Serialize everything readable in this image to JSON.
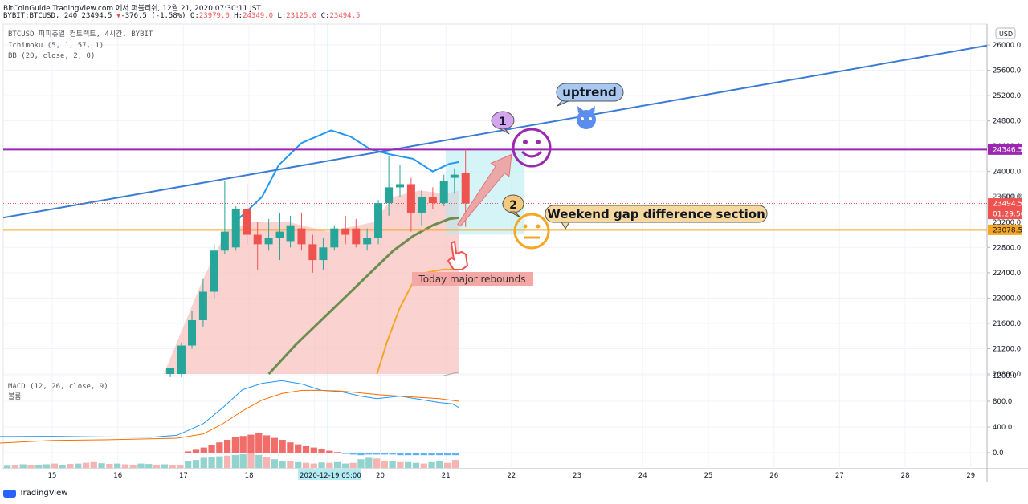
{
  "header": {
    "line1": "BitCoinGuide TradingView.com 에서 퍼블리쉬, 12월 21, 2020 07:30:11 JST",
    "symbol": "BYBIT:BTCUSD, 240",
    "last": "23494.5",
    "change": "-376.5 (-1.58%)",
    "open_label": "O:",
    "open": "23979.0",
    "high_label": "H:",
    "high": "24349.0",
    "low_label": "L:",
    "low": "23125.0",
    "close_label": "C:",
    "close": "23494.5"
  },
  "legend": {
    "title": "BTCUSD 퍼피츄얼 컨트랙트, 4시간, BYBIT",
    "ichimoku": "Ichimoku (5, 1, 57, 1)",
    "bb": "BB (20, close, 2, 0)"
  },
  "macd_legend": {
    "title": "MACD (12, 26, close, 9)",
    "sub": "볼륨"
  },
  "currency_button": "USD",
  "footer": {
    "brand": "TradingView"
  },
  "annotations": {
    "uptrend": "uptrend",
    "gap": "Weekend gap difference section",
    "rebound": "Today major rebounds",
    "marker1": "1",
    "marker2": "2"
  },
  "price_tags": {
    "purple": "24346.5",
    "last": "23494.5",
    "countdown": "01:29:50",
    "orange": "23078.5",
    "partial": "23600.0"
  },
  "colors": {
    "up": "#26a69a",
    "down": "#ef5350",
    "trend": "#3a7bd5",
    "purple": "#9c27b0",
    "orange": "#f5a623",
    "ichimoku_green": "#6b8e4e",
    "cloud": "#f8c3c0",
    "macd": "#2196f3",
    "signal": "#ff6d00"
  },
  "chart_data": {
    "type": "candlestick",
    "x_ticks": [
      "15",
      "16",
      "17",
      "18",
      "19",
      "20",
      "21",
      "22",
      "23",
      "24",
      "25",
      "26",
      "27",
      "28",
      "29"
    ],
    "x_highlight": "2020-12-19  05:00",
    "y_ticks": [
      "26000.0",
      "25600.0",
      "25200.0",
      "24800.0",
      "24400.0",
      "24000.0",
      "23600.0",
      "23200.0",
      "22800.0",
      "22400.0",
      "22000.0",
      "21600.0",
      "21200.0",
      "20800.0"
    ],
    "ylim": [
      20800,
      26000
    ],
    "macd_y_ticks": [
      "1200.0",
      "800.0",
      "400.0",
      "0.0"
    ],
    "macd_ylim": [
      -200,
      1200
    ],
    "candles": [
      {
        "x": 16.8,
        "o": 20800,
        "c": 20900,
        "h": 20900,
        "l": 20750
      },
      {
        "x": 16.97,
        "o": 20800,
        "c": 21250,
        "h": 21300,
        "l": 20750
      },
      {
        "x": 17.13,
        "o": 21250,
        "c": 21650,
        "h": 21800,
        "l": 21200
      },
      {
        "x": 17.3,
        "o": 21650,
        "c": 22100,
        "h": 22300,
        "l": 21550
      },
      {
        "x": 17.47,
        "o": 22100,
        "c": 22750,
        "h": 22850,
        "l": 22000
      },
      {
        "x": 17.63,
        "o": 22750,
        "c": 23050,
        "h": 23850,
        "l": 22700
      },
      {
        "x": 17.8,
        "o": 22800,
        "c": 23400,
        "h": 23450,
        "l": 22750
      },
      {
        "x": 17.97,
        "o": 23400,
        "c": 23000,
        "h": 23800,
        "l": 22850
      },
      {
        "x": 18.13,
        "o": 23000,
        "c": 22850,
        "h": 23200,
        "l": 22450
      },
      {
        "x": 18.3,
        "o": 22850,
        "c": 22950,
        "h": 23250,
        "l": 22750
      },
      {
        "x": 18.47,
        "o": 22950,
        "c": 23050,
        "h": 23350,
        "l": 22600
      },
      {
        "x": 18.63,
        "o": 22900,
        "c": 23150,
        "h": 23300,
        "l": 22800
      },
      {
        "x": 18.8,
        "o": 23100,
        "c": 22850,
        "h": 23350,
        "l": 22750
      },
      {
        "x": 18.97,
        "o": 22850,
        "c": 22600,
        "h": 23000,
        "l": 22400
      },
      {
        "x": 19.13,
        "o": 22600,
        "c": 22800,
        "h": 22950,
        "l": 22450
      },
      {
        "x": 19.3,
        "o": 22800,
        "c": 23100,
        "h": 23150,
        "l": 22750
      },
      {
        "x": 19.47,
        "o": 23100,
        "c": 23000,
        "h": 23300,
        "l": 22850
      },
      {
        "x": 19.63,
        "o": 23100,
        "c": 22850,
        "h": 23250,
        "l": 22800
      },
      {
        "x": 19.8,
        "o": 22850,
        "c": 22950,
        "h": 23100,
        "l": 22750
      },
      {
        "x": 19.97,
        "o": 22950,
        "c": 23500,
        "h": 23550,
        "l": 22850
      },
      {
        "x": 20.13,
        "o": 23500,
        "c": 23750,
        "h": 24250,
        "l": 23300
      },
      {
        "x": 20.3,
        "o": 23750,
        "c": 23800,
        "h": 24100,
        "l": 23600
      },
      {
        "x": 20.47,
        "o": 23800,
        "c": 23350,
        "h": 23900,
        "l": 23050
      },
      {
        "x": 20.63,
        "o": 23350,
        "c": 23600,
        "h": 23700,
        "l": 23150
      },
      {
        "x": 20.8,
        "o": 23600,
        "c": 23500,
        "h": 23750,
        "l": 23400
      },
      {
        "x": 20.97,
        "o": 23500,
        "c": 23850,
        "h": 23950,
        "l": 23450
      },
      {
        "x": 21.13,
        "o": 23900,
        "c": 23950,
        "h": 24050,
        "l": 23650
      },
      {
        "x": 21.3,
        "o": 23979,
        "c": 23494.5,
        "h": 24349,
        "l": 23125
      }
    ],
    "trendline": {
      "x": [
        14.0,
        29.3
      ],
      "y": [
        23270,
        25990
      ]
    },
    "purple_line": 24346.5,
    "orange_line": 23078.5,
    "bb_upper": [
      {
        "x": 17.85,
        "y": 23260
      },
      {
        "x": 18.2,
        "y": 23600
      },
      {
        "x": 18.45,
        "y": 24100
      },
      {
        "x": 18.8,
        "y": 24450
      },
      {
        "x": 19.25,
        "y": 24650
      },
      {
        "x": 19.55,
        "y": 24550
      },
      {
        "x": 19.85,
        "y": 24350
      },
      {
        "x": 20.15,
        "y": 24270
      },
      {
        "x": 20.5,
        "y": 24200
      },
      {
        "x": 20.8,
        "y": 24000
      },
      {
        "x": 21.05,
        "y": 24120
      },
      {
        "x": 21.2,
        "y": 24150
      }
    ],
    "ichimoku_base": [
      {
        "x": 18.3,
        "y": 20800
      },
      {
        "x": 18.7,
        "y": 21250
      },
      {
        "x": 19.1,
        "y": 21650
      },
      {
        "x": 19.5,
        "y": 22050
      },
      {
        "x": 19.9,
        "y": 22450
      },
      {
        "x": 20.2,
        "y": 22750
      },
      {
        "x": 20.5,
        "y": 22980
      },
      {
        "x": 20.8,
        "y": 23150
      },
      {
        "x": 21.05,
        "y": 23250
      },
      {
        "x": 21.2,
        "y": 23270
      }
    ],
    "ichimoku_lead": [
      {
        "x": 19.95,
        "y": 20800
      },
      {
        "x": 20.1,
        "y": 21300
      },
      {
        "x": 20.3,
        "y": 21850
      },
      {
        "x": 20.5,
        "y": 22250
      },
      {
        "x": 20.7,
        "y": 22400
      },
      {
        "x": 20.95,
        "y": 22450
      },
      {
        "x": 21.2,
        "y": 22450
      }
    ],
    "macd": [
      {
        "x": 14.0,
        "y": 250
      },
      {
        "x": 15.0,
        "y": 255
      },
      {
        "x": 15.8,
        "y": 245
      },
      {
        "x": 16.5,
        "y": 240
      },
      {
        "x": 16.9,
        "y": 270
      },
      {
        "x": 17.3,
        "y": 450
      },
      {
        "x": 17.6,
        "y": 700
      },
      {
        "x": 17.9,
        "y": 980
      },
      {
        "x": 18.2,
        "y": 1080
      },
      {
        "x": 18.5,
        "y": 1120
      },
      {
        "x": 18.8,
        "y": 1070
      },
      {
        "x": 19.1,
        "y": 970
      },
      {
        "x": 19.4,
        "y": 950
      },
      {
        "x": 19.7,
        "y": 880
      },
      {
        "x": 19.95,
        "y": 840
      },
      {
        "x": 20.3,
        "y": 880
      },
      {
        "x": 20.6,
        "y": 830
      },
      {
        "x": 20.9,
        "y": 780
      },
      {
        "x": 21.1,
        "y": 760
      },
      {
        "x": 21.2,
        "y": 700
      }
    ],
    "signal": [
      {
        "x": 14.0,
        "y": 140
      },
      {
        "x": 15.0,
        "y": 190
      },
      {
        "x": 15.8,
        "y": 200
      },
      {
        "x": 16.5,
        "y": 215
      },
      {
        "x": 16.9,
        "y": 225
      },
      {
        "x": 17.3,
        "y": 290
      },
      {
        "x": 17.6,
        "y": 450
      },
      {
        "x": 17.9,
        "y": 650
      },
      {
        "x": 18.2,
        "y": 820
      },
      {
        "x": 18.5,
        "y": 920
      },
      {
        "x": 18.8,
        "y": 970
      },
      {
        "x": 19.1,
        "y": 970
      },
      {
        "x": 19.4,
        "y": 960
      },
      {
        "x": 19.7,
        "y": 930
      },
      {
        "x": 20.0,
        "y": 900
      },
      {
        "x": 20.3,
        "y": 880
      },
      {
        "x": 20.6,
        "y": 860
      },
      {
        "x": 20.9,
        "y": 840
      },
      {
        "x": 21.2,
        "y": 800
      }
    ],
    "histogram": [
      0,
      0,
      0,
      0,
      0,
      0,
      0,
      0,
      0,
      0,
      0,
      0,
      0,
      0,
      0,
      0,
      0,
      0,
      0,
      0,
      0,
      0,
      0,
      20,
      45,
      80,
      120,
      160,
      200,
      240,
      260,
      280,
      300,
      270,
      230,
      200,
      160,
      130,
      100,
      80,
      60,
      30,
      10,
      -20,
      -30,
      -40,
      -30,
      -30,
      -30,
      -30,
      -40,
      -40,
      -40,
      -40,
      -40,
      -40,
      -40,
      -40
    ],
    "volume": [
      30,
      40,
      50,
      40,
      45,
      50,
      60,
      40,
      55,
      60,
      70,
      80,
      65,
      55,
      60,
      50,
      40,
      60,
      55,
      45,
      50,
      40,
      35,
      90,
      110,
      140,
      150,
      160,
      170,
      180,
      190,
      200,
      180,
      150,
      120,
      100,
      90,
      80,
      70,
      60,
      75,
      70,
      80,
      60,
      70,
      120,
      140,
      130,
      100,
      90,
      80,
      80,
      70,
      60,
      80,
      90,
      70,
      110
    ],
    "volume_dir": [
      1,
      0,
      1,
      0,
      1,
      1,
      0,
      1,
      0,
      1,
      0,
      0,
      1,
      0,
      1,
      0,
      0,
      1,
      1,
      0,
      1,
      0,
      0,
      1,
      1,
      1,
      1,
      1,
      0,
      1,
      1,
      0,
      1,
      0,
      1,
      1,
      0,
      1,
      0,
      0,
      1,
      0,
      1,
      1,
      0,
      1,
      1,
      0,
      0,
      1,
      0,
      1,
      1,
      0,
      1,
      1,
      0,
      0
    ]
  }
}
